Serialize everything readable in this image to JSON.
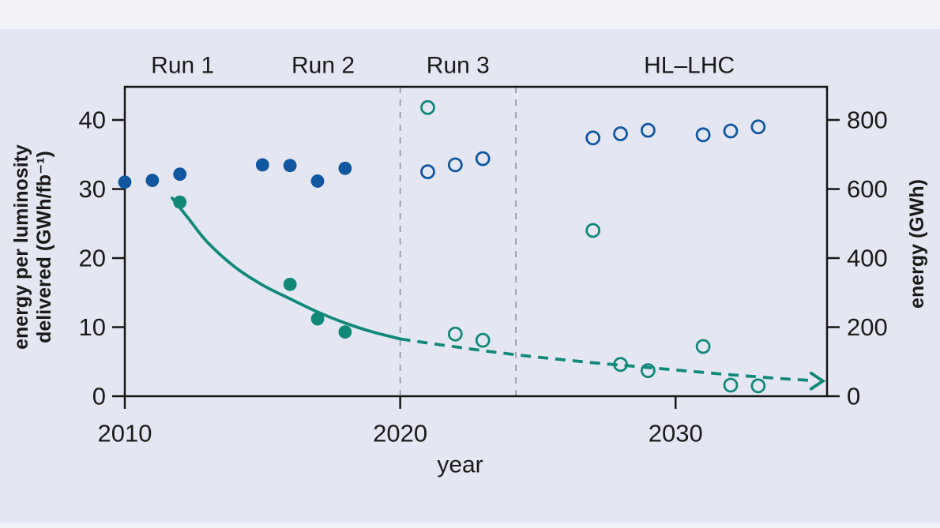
{
  "figure": {
    "bg_outer": "#f2f3f8",
    "bg_inner": "#e4e7f2",
    "teal": "#108978",
    "blue": "#1057a0",
    "axis_color": "#161616",
    "divider_color": "#8d939e"
  },
  "chart_data": {
    "type": "scatter",
    "title": "",
    "xlabel": "year",
    "ylabel_left": "energy per luminosity delivered (GWh/fb⁻¹)",
    "ylabel_left_lines": [
      "energy per luminosity",
      "delivered (GWh/fb⁻¹)"
    ],
    "ylabel_right": "energy (GWh)",
    "x_ticks": [
      2010,
      2020,
      2030
    ],
    "x_range": [
      2010,
      2035.5
    ],
    "y_left_ticks": [
      0,
      10,
      20,
      30,
      40
    ],
    "y_left_range": [
      0,
      44.8
    ],
    "y_right_ticks": [
      0,
      200,
      400,
      600,
      800
    ],
    "y_right_range": [
      0,
      896
    ],
    "grid": false,
    "legend": "none",
    "period_labels": [
      {
        "label": "Run 1",
        "year": 2012.1
      },
      {
        "label": "Run 2",
        "year": 2017.2
      },
      {
        "label": "Run 3",
        "year": 2022.1
      },
      {
        "label": "HL–LHC",
        "year": 2030.5
      }
    ],
    "dividers_year": [
      2020,
      2024.2
    ],
    "series": [
      {
        "name": "energy delivered (measured)",
        "axis": "right",
        "marker": "filled",
        "color_key": "blue",
        "points": [
          [
            2010,
            620
          ],
          [
            2011,
            625
          ],
          [
            2012,
            643
          ],
          [
            2015,
            670
          ],
          [
            2016,
            668
          ],
          [
            2017,
            623
          ],
          [
            2018,
            660
          ]
        ]
      },
      {
        "name": "energy projected",
        "axis": "right",
        "marker": "open",
        "color_key": "blue",
        "points": [
          [
            2021,
            650
          ],
          [
            2022,
            670
          ],
          [
            2023,
            688
          ],
          [
            2027,
            748
          ],
          [
            2028,
            760
          ],
          [
            2029,
            770
          ],
          [
            2031,
            757
          ],
          [
            2032,
            768
          ],
          [
            2033,
            780
          ]
        ]
      },
      {
        "name": "energy per luminosity delivered (measured)",
        "axis": "left",
        "marker": "filled",
        "color_key": "teal",
        "points": [
          [
            2012,
            28.1
          ],
          [
            2016,
            16.2
          ],
          [
            2017,
            11.2
          ],
          [
            2018,
            9.3
          ]
        ]
      },
      {
        "name": "energy per luminosity projected",
        "axis": "left",
        "marker": "open",
        "color_key": "teal",
        "points": [
          [
            2021,
            41.8
          ],
          [
            2022,
            9.0
          ],
          [
            2023,
            8.1
          ],
          [
            2027,
            24.0
          ],
          [
            2028,
            4.6
          ],
          [
            2029,
            3.7
          ],
          [
            2031,
            7.2
          ],
          [
            2032,
            1.6
          ],
          [
            2033,
            1.5
          ]
        ]
      }
    ],
    "trend": {
      "name": "energy per luminosity trend",
      "axis": "left",
      "color_key": "teal",
      "solid": [
        [
          2011.72,
          28.7
        ],
        [
          2012.3,
          25.8
        ],
        [
          2013,
          22.3
        ],
        [
          2014,
          18.7
        ],
        [
          2015,
          16.1
        ],
        [
          2016,
          14.1
        ],
        [
          2017,
          12.2
        ],
        [
          2018,
          10.6
        ],
        [
          2019,
          9.3
        ],
        [
          2020,
          8.3
        ]
      ],
      "dashed": [
        [
          2020,
          8.3
        ],
        [
          2021,
          7.7
        ],
        [
          2022,
          7.15
        ],
        [
          2023,
          6.6
        ],
        [
          2024,
          6.1
        ],
        [
          2025,
          5.65
        ],
        [
          2026,
          5.25
        ],
        [
          2027,
          4.85
        ],
        [
          2028,
          4.5
        ],
        [
          2029,
          4.15
        ],
        [
          2030,
          3.8
        ],
        [
          2031,
          3.45
        ],
        [
          2032,
          3.1
        ],
        [
          2033,
          2.8
        ],
        [
          2034,
          2.5
        ],
        [
          2035.05,
          2.25
        ]
      ],
      "arrow_year": 2035.35,
      "arrow_value": 2.2
    }
  }
}
